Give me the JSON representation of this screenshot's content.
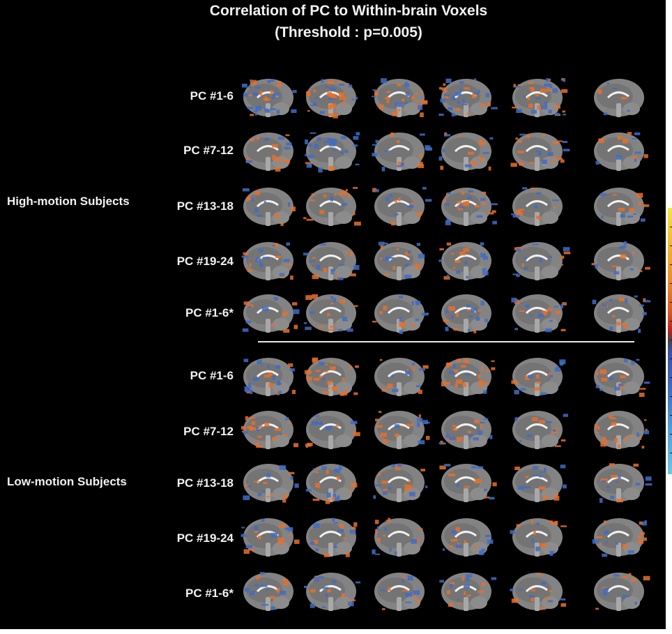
{
  "title": {
    "line1": "Correlation of PC to Within-brain Voxels",
    "line2": "(Threshold : p=0.005)"
  },
  "groups": {
    "high": "High-motion Subjects",
    "low": "Low-motion Subjects"
  },
  "rows": [
    "PC #1-6",
    "PC #7-12",
    "PC #13-18",
    "PC #19-24",
    "PC #1-6*",
    "PC #1-6",
    "PC #7-12",
    "PC #13-18",
    "PC #19-24",
    "PC #1-6*"
  ],
  "colors": {
    "background": "#000000",
    "positive_correlation": "#e8702a",
    "negative_correlation": "#3f6cc4",
    "brain_gray": "#9a9a9a"
  },
  "colorbar_scale": [
    "#f5e642",
    "#e98a2a",
    "#b52420",
    "#3a4fa8",
    "#6cc9e6"
  ]
}
